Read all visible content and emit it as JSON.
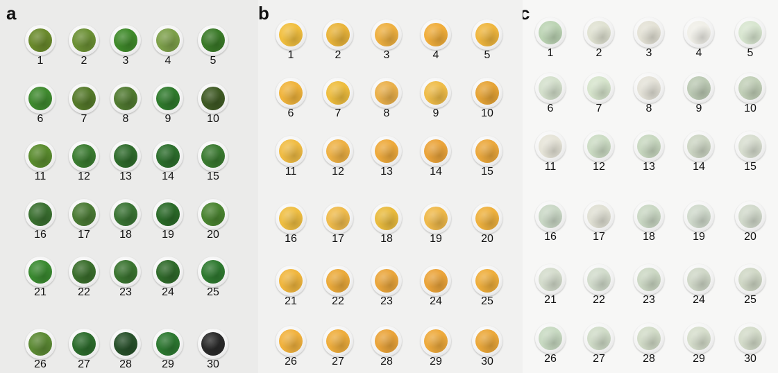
{
  "panels": [
    {
      "id": "a",
      "label": "a",
      "samples": [
        {
          "number": "1",
          "color": "#6a8a2c"
        },
        {
          "number": "2",
          "color": "#6b9034"
        },
        {
          "number": "3",
          "color": "#3f8a2a"
        },
        {
          "number": "4",
          "color": "#7da04a"
        },
        {
          "number": "5",
          "color": "#3a7a28"
        },
        {
          "number": "6",
          "color": "#3f8a2e"
        },
        {
          "number": "7",
          "color": "#557a2a"
        },
        {
          "number": "8",
          "color": "#507a30"
        },
        {
          "number": "9",
          "color": "#2f7a2c"
        },
        {
          "number": "10",
          "color": "#3f5a24"
        },
        {
          "number": "11",
          "color": "#5a8c2e"
        },
        {
          "number": "12",
          "color": "#3a7c30"
        },
        {
          "number": "13",
          "color": "#2f6c2c"
        },
        {
          "number": "14",
          "color": "#2c6e2c"
        },
        {
          "number": "15",
          "color": "#3a7a30"
        },
        {
          "number": "16",
          "color": "#3a7030"
        },
        {
          "number": "17",
          "color": "#4a7a34"
        },
        {
          "number": "18",
          "color": "#3a7434"
        },
        {
          "number": "19",
          "color": "#2a6a28"
        },
        {
          "number": "20",
          "color": "#4a8430"
        },
        {
          "number": "21",
          "color": "#3a8a30"
        },
        {
          "number": "22",
          "color": "#3a6e2c"
        },
        {
          "number": "23",
          "color": "#3a7430"
        },
        {
          "number": "24",
          "color": "#2f6a2a"
        },
        {
          "number": "25",
          "color": "#2f7a30"
        },
        {
          "number": "26",
          "color": "#5c8a34"
        },
        {
          "number": "27",
          "color": "#2c6c2c"
        },
        {
          "number": "28",
          "color": "#27502a"
        },
        {
          "number": "29",
          "color": "#2c7830"
        },
        {
          "number": "30",
          "color": "#2a2a2a"
        }
      ]
    },
    {
      "id": "b",
      "label": "b",
      "samples": [
        {
          "number": "1",
          "color": "#f1bf3f"
        },
        {
          "number": "2",
          "color": "#e9b43a"
        },
        {
          "number": "3",
          "color": "#eeb040"
        },
        {
          "number": "4",
          "color": "#f0ad3a"
        },
        {
          "number": "5",
          "color": "#efb63e"
        },
        {
          "number": "6",
          "color": "#f0b43c"
        },
        {
          "number": "7",
          "color": "#eebd3e"
        },
        {
          "number": "8",
          "color": "#eab04a"
        },
        {
          "number": "9",
          "color": "#efbc48"
        },
        {
          "number": "10",
          "color": "#e6a436"
        },
        {
          "number": "11",
          "color": "#f0bc44"
        },
        {
          "number": "12",
          "color": "#eeb144"
        },
        {
          "number": "13",
          "color": "#eeaa3c"
        },
        {
          "number": "14",
          "color": "#eba43a"
        },
        {
          "number": "15",
          "color": "#eba83c"
        },
        {
          "number": "16",
          "color": "#efbe42"
        },
        {
          "number": "17",
          "color": "#efbb4c"
        },
        {
          "number": "18",
          "color": "#e9bb3e"
        },
        {
          "number": "19",
          "color": "#efb94a"
        },
        {
          "number": "20",
          "color": "#eeb13e"
        },
        {
          "number": "21",
          "color": "#f0b63e"
        },
        {
          "number": "22",
          "color": "#ebaa3a"
        },
        {
          "number": "23",
          "color": "#eaa63c"
        },
        {
          "number": "24",
          "color": "#eba43a"
        },
        {
          "number": "25",
          "color": "#eeae3c"
        },
        {
          "number": "26",
          "color": "#f1b23e"
        },
        {
          "number": "27",
          "color": "#eead3c"
        },
        {
          "number": "28",
          "color": "#eaa43a"
        },
        {
          "number": "29",
          "color": "#eeaa3c"
        },
        {
          "number": "30",
          "color": "#eba83a"
        }
      ]
    },
    {
      "id": "c",
      "label": "c",
      "samples": [
        {
          "number": "1",
          "color": "#bcd4b4"
        },
        {
          "number": "2",
          "color": "#e0e2d2"
        },
        {
          "number": "3",
          "color": "#e4e2d6"
        },
        {
          "number": "4",
          "color": "#f0efe8"
        },
        {
          "number": "5",
          "color": "#d8e6d0"
        },
        {
          "number": "6",
          "color": "#d4e0cc"
        },
        {
          "number": "7",
          "color": "#d6e4cc"
        },
        {
          "number": "8",
          "color": "#e4e2d8"
        },
        {
          "number": "9",
          "color": "#bccab4"
        },
        {
          "number": "10",
          "color": "#c2d0b8"
        },
        {
          "number": "11",
          "color": "#e6e4d8"
        },
        {
          "number": "12",
          "color": "#ccdcc4"
        },
        {
          "number": "13",
          "color": "#c8d8c0"
        },
        {
          "number": "14",
          "color": "#cdd6c4"
        },
        {
          "number": "15",
          "color": "#d8ded0"
        },
        {
          "number": "16",
          "color": "#cad8c6"
        },
        {
          "number": "17",
          "color": "#e0e0d4"
        },
        {
          "number": "18",
          "color": "#cad8c4"
        },
        {
          "number": "19",
          "color": "#d0dacc"
        },
        {
          "number": "20",
          "color": "#d2dacc"
        },
        {
          "number": "21",
          "color": "#d4dccc"
        },
        {
          "number": "22",
          "color": "#d2dccc"
        },
        {
          "number": "23",
          "color": "#ccd8c4"
        },
        {
          "number": "24",
          "color": "#d0d8c8"
        },
        {
          "number": "25",
          "color": "#d0d8c6"
        },
        {
          "number": "26",
          "color": "#c8dac2"
        },
        {
          "number": "27",
          "color": "#d0dcc8"
        },
        {
          "number": "28",
          "color": "#d2dcc8"
        },
        {
          "number": "29",
          "color": "#d6decc"
        },
        {
          "number": "30",
          "color": "#d4dcca"
        }
      ]
    }
  ]
}
